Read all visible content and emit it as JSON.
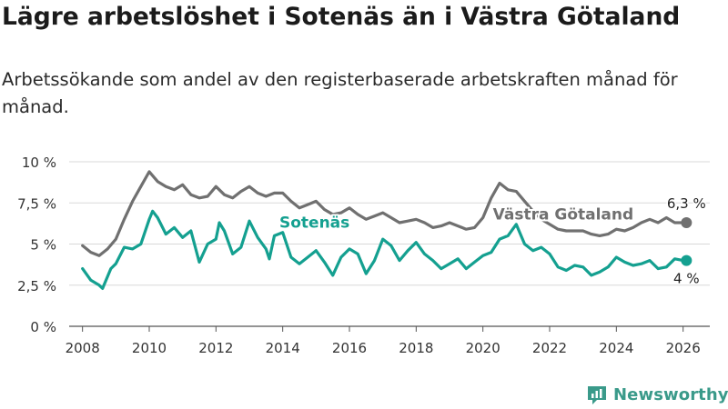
{
  "title": "Lägre arbetslöshet i Sotenäs än i Västra Götaland",
  "subtitle": "Arbetssökande som andel av den registerbaserade arbetskraften månad för månad.",
  "brand": {
    "name": "Newsworthy",
    "color": "#3a9a8a"
  },
  "chart_data": {
    "type": "line",
    "title": "Lägre arbetslöshet i Sotenäs än i Västra Götaland",
    "xlabel": "",
    "ylabel": "",
    "xlim": [
      2007.6,
      2026.8
    ],
    "ylim": [
      0,
      10
    ],
    "y_ticks": [
      0,
      2.5,
      5,
      7.5,
      10
    ],
    "y_tick_labels": [
      "0 %",
      "2,5 %",
      "5 %",
      "7,5 %",
      "10 %"
    ],
    "x_ticks": [
      2008,
      2010,
      2012,
      2014,
      2016,
      2018,
      2020,
      2022,
      2024,
      2026
    ],
    "x_tick_labels": [
      "2008",
      "2010",
      "2012",
      "2014",
      "2016",
      "2018",
      "2020",
      "2022",
      "2024",
      "2026"
    ],
    "grid": true,
    "series": [
      {
        "name": "Västra Götaland",
        "color": "#707070",
        "end_label": "6,3 %",
        "points": [
          [
            2008.0,
            4.9
          ],
          [
            2008.25,
            4.5
          ],
          [
            2008.5,
            4.3
          ],
          [
            2008.75,
            4.7
          ],
          [
            2009.0,
            5.3
          ],
          [
            2009.25,
            6.5
          ],
          [
            2009.5,
            7.6
          ],
          [
            2009.75,
            8.5
          ],
          [
            2010.0,
            9.4
          ],
          [
            2010.25,
            8.8
          ],
          [
            2010.5,
            8.5
          ],
          [
            2010.75,
            8.3
          ],
          [
            2011.0,
            8.6
          ],
          [
            2011.25,
            8.0
          ],
          [
            2011.5,
            7.8
          ],
          [
            2011.75,
            7.9
          ],
          [
            2012.0,
            8.5
          ],
          [
            2012.25,
            8.0
          ],
          [
            2012.5,
            7.8
          ],
          [
            2012.75,
            8.2
          ],
          [
            2013.0,
            8.5
          ],
          [
            2013.25,
            8.1
          ],
          [
            2013.5,
            7.9
          ],
          [
            2013.75,
            8.1
          ],
          [
            2014.0,
            8.1
          ],
          [
            2014.25,
            7.6
          ],
          [
            2014.5,
            7.2
          ],
          [
            2014.75,
            7.4
          ],
          [
            2015.0,
            7.6
          ],
          [
            2015.25,
            7.1
          ],
          [
            2015.5,
            6.8
          ],
          [
            2015.75,
            6.9
          ],
          [
            2016.0,
            7.2
          ],
          [
            2016.25,
            6.8
          ],
          [
            2016.5,
            6.5
          ],
          [
            2016.75,
            6.7
          ],
          [
            2017.0,
            6.9
          ],
          [
            2017.25,
            6.6
          ],
          [
            2017.5,
            6.3
          ],
          [
            2017.75,
            6.4
          ],
          [
            2018.0,
            6.5
          ],
          [
            2018.25,
            6.3
          ],
          [
            2018.5,
            6.0
          ],
          [
            2018.75,
            6.1
          ],
          [
            2019.0,
            6.3
          ],
          [
            2019.25,
            6.1
          ],
          [
            2019.5,
            5.9
          ],
          [
            2019.75,
            6.0
          ],
          [
            2020.0,
            6.6
          ],
          [
            2020.25,
            7.8
          ],
          [
            2020.5,
            8.7
          ],
          [
            2020.75,
            8.3
          ],
          [
            2021.0,
            8.2
          ],
          [
            2021.25,
            7.6
          ],
          [
            2021.5,
            7.0
          ],
          [
            2021.75,
            6.5
          ],
          [
            2022.0,
            6.2
          ],
          [
            2022.25,
            5.9
          ],
          [
            2022.5,
            5.8
          ],
          [
            2022.75,
            5.8
          ],
          [
            2023.0,
            5.8
          ],
          [
            2023.25,
            5.6
          ],
          [
            2023.5,
            5.5
          ],
          [
            2023.75,
            5.6
          ],
          [
            2024.0,
            5.9
          ],
          [
            2024.25,
            5.8
          ],
          [
            2024.5,
            6.0
          ],
          [
            2024.75,
            6.3
          ],
          [
            2025.0,
            6.5
          ],
          [
            2025.25,
            6.3
          ],
          [
            2025.5,
            6.6
          ],
          [
            2025.75,
            6.3
          ],
          [
            2026.0,
            6.3
          ],
          [
            2026.1,
            6.3
          ]
        ]
      },
      {
        "name": "Sotenäs",
        "color": "#14a090",
        "end_label": "4 %",
        "points": [
          [
            2008.0,
            3.5
          ],
          [
            2008.25,
            2.8
          ],
          [
            2008.5,
            2.5
          ],
          [
            2008.6,
            2.3
          ],
          [
            2008.85,
            3.5
          ],
          [
            2009.0,
            3.8
          ],
          [
            2009.25,
            4.8
          ],
          [
            2009.5,
            4.7
          ],
          [
            2009.75,
            5.0
          ],
          [
            2010.0,
            6.5
          ],
          [
            2010.1,
            7.0
          ],
          [
            2010.25,
            6.6
          ],
          [
            2010.5,
            5.6
          ],
          [
            2010.75,
            6.0
          ],
          [
            2011.0,
            5.4
          ],
          [
            2011.25,
            5.8
          ],
          [
            2011.5,
            3.9
          ],
          [
            2011.75,
            5.0
          ],
          [
            2012.0,
            5.3
          ],
          [
            2012.1,
            6.3
          ],
          [
            2012.25,
            5.8
          ],
          [
            2012.5,
            4.4
          ],
          [
            2012.75,
            4.8
          ],
          [
            2013.0,
            6.4
          ],
          [
            2013.25,
            5.4
          ],
          [
            2013.5,
            4.7
          ],
          [
            2013.6,
            4.1
          ],
          [
            2013.75,
            5.5
          ],
          [
            2014.0,
            5.7
          ],
          [
            2014.25,
            4.2
          ],
          [
            2014.5,
            3.8
          ],
          [
            2014.75,
            4.2
          ],
          [
            2015.0,
            4.6
          ],
          [
            2015.25,
            3.9
          ],
          [
            2015.5,
            3.1
          ],
          [
            2015.75,
            4.2
          ],
          [
            2016.0,
            4.7
          ],
          [
            2016.25,
            4.4
          ],
          [
            2016.5,
            3.2
          ],
          [
            2016.75,
            4.0
          ],
          [
            2017.0,
            5.3
          ],
          [
            2017.25,
            4.9
          ],
          [
            2017.5,
            4.0
          ],
          [
            2017.75,
            4.6
          ],
          [
            2018.0,
            5.1
          ],
          [
            2018.25,
            4.4
          ],
          [
            2018.5,
            4.0
          ],
          [
            2018.75,
            3.5
          ],
          [
            2019.0,
            3.8
          ],
          [
            2019.25,
            4.1
          ],
          [
            2019.5,
            3.5
          ],
          [
            2019.75,
            3.9
          ],
          [
            2020.0,
            4.3
          ],
          [
            2020.25,
            4.5
          ],
          [
            2020.5,
            5.3
          ],
          [
            2020.75,
            5.5
          ],
          [
            2021.0,
            6.2
          ],
          [
            2021.25,
            5.0
          ],
          [
            2021.5,
            4.6
          ],
          [
            2021.75,
            4.8
          ],
          [
            2022.0,
            4.4
          ],
          [
            2022.25,
            3.6
          ],
          [
            2022.5,
            3.4
          ],
          [
            2022.75,
            3.7
          ],
          [
            2023.0,
            3.6
          ],
          [
            2023.25,
            3.1
          ],
          [
            2023.5,
            3.3
          ],
          [
            2023.75,
            3.6
          ],
          [
            2024.0,
            4.2
          ],
          [
            2024.25,
            3.9
          ],
          [
            2024.5,
            3.7
          ],
          [
            2024.75,
            3.8
          ],
          [
            2025.0,
            4.0
          ],
          [
            2025.25,
            3.5
          ],
          [
            2025.5,
            3.6
          ],
          [
            2025.75,
            4.1
          ],
          [
            2026.0,
            4.0
          ],
          [
            2026.1,
            4.0
          ]
        ]
      }
    ],
    "annotations": [
      {
        "series": "Sotenäs",
        "text": "Sotenäs",
        "at": [
          2013.9,
          6.0
        ]
      },
      {
        "series": "Västra Götaland",
        "text": "Västra Götaland",
        "at": [
          2020.3,
          6.5
        ]
      }
    ]
  }
}
